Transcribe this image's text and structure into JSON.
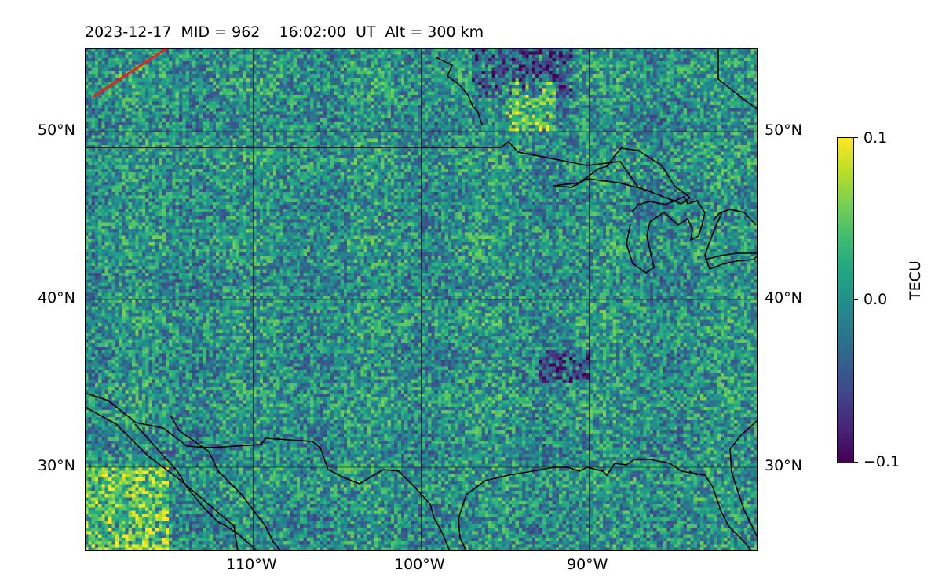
{
  "title": "2023-12-17  MID = 962    16:02:00  UT  Alt = 300 km",
  "map": {
    "lon_range": [
      -120,
      -80
    ],
    "lat_range": [
      25,
      55
    ],
    "lon_ticks": [
      {
        "value": -110,
        "label": "110°W"
      },
      {
        "value": -100,
        "label": "100°W"
      },
      {
        "value": -90,
        "label": "90°W"
      }
    ],
    "lat_ticks": [
      {
        "value": 50,
        "label": "50°N"
      },
      {
        "value": 40,
        "label": "40°N"
      },
      {
        "value": 30,
        "label": "30°N"
      }
    ],
    "gridlines": true,
    "colormap": "viridis",
    "track_color": "#e8221b",
    "coastline_color": "#000000"
  },
  "colorbar": {
    "label": "TECU",
    "ticks": [
      {
        "value": 0.1,
        "label": "0.1"
      },
      {
        "value": 0.0,
        "label": "0.0"
      },
      {
        "value": -0.1,
        "label": "−0.1"
      }
    ],
    "range": [
      -0.1,
      0.1
    ]
  },
  "chart_data": {
    "type": "heatmap",
    "title": "2023-12-17  MID = 962    16:02:00  UT  Alt = 300 km",
    "xlabel": "",
    "ylabel": "",
    "xlim": [
      -120,
      -80
    ],
    "ylim": [
      25,
      55
    ],
    "colorbar_label": "TECU",
    "clim": [
      -0.1,
      0.1
    ],
    "highlights": [
      {
        "lon": [
          -95,
          -92
        ],
        "lat": [
          50,
          53
        ],
        "sign": "positive"
      },
      {
        "lon": [
          -120,
          -115
        ],
        "lat": [
          25,
          30
        ],
        "sign": "positive"
      },
      {
        "lon": [
          -97,
          -91
        ],
        "lat": [
          52,
          55
        ],
        "sign": "negative"
      },
      {
        "lon": [
          -93,
          -90
        ],
        "lat": [
          35,
          37
        ],
        "sign": "negative"
      }
    ],
    "track": [
      [
        -120,
        52
      ],
      [
        -115,
        55
      ]
    ]
  }
}
